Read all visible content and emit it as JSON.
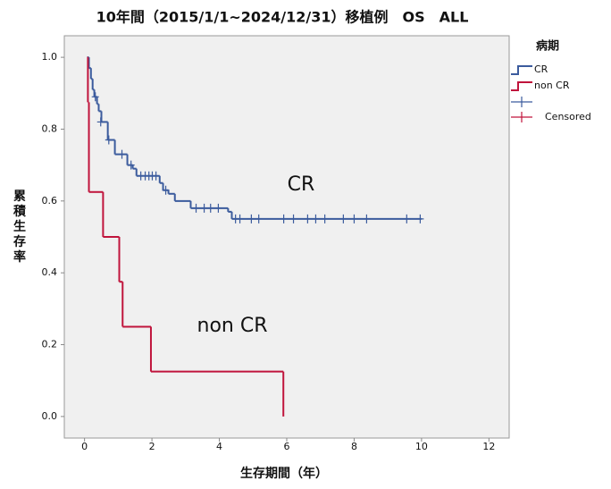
{
  "chart_data": {
    "type": "kaplan-meier",
    "title": "10年間（2015/1/1~2024/12/31）移植例　OS　ALL",
    "x_label": "生存期間（年）",
    "y_label": "累積生存率",
    "legend_title": "病期",
    "censored_label": "Censored",
    "xlim": [
      -0.6,
      12.6
    ],
    "ylim": [
      -0.06,
      1.06
    ],
    "xticks": [
      0,
      2,
      4,
      6,
      8,
      10,
      12
    ],
    "yticks": [
      {
        "value": 0,
        "label": "0.0"
      },
      0.2,
      0.4,
      0.6,
      0.8,
      {
        "value": 1,
        "label": "1.0"
      }
    ],
    "grid": false,
    "series": [
      {
        "name": "CR",
        "color": "#3b5b9d",
        "x": [
          0.08,
          0.13,
          0.19,
          0.24,
          0.29,
          0.37,
          0.42,
          0.5,
          0.69,
          0.9,
          1.27,
          1.43,
          1.54,
          2.23,
          2.33,
          2.49,
          2.68,
          3.15,
          4.26,
          4.37,
          10.0
        ],
        "values": [
          1.0,
          0.97,
          0.94,
          0.91,
          0.89,
          0.87,
          0.85,
          0.82,
          0.77,
          0.73,
          0.7,
          0.69,
          0.67,
          0.65,
          0.63,
          0.62,
          0.6,
          0.58,
          0.57,
          0.55,
          0.55
        ],
        "censored": {
          "x": [
            0.32,
            0.48,
            0.72,
            1.11,
            1.38,
            1.67,
            1.8,
            1.91,
            2.01,
            2.12,
            2.41,
            3.31,
            3.55,
            3.74,
            3.97,
            4.48,
            4.61,
            4.95,
            5.17,
            5.91,
            6.2,
            6.62,
            6.86,
            7.13,
            7.68,
            8.0,
            8.37,
            9.56,
            9.96
          ],
          "values": [
            0.89,
            0.82,
            0.77,
            0.73,
            0.7,
            0.67,
            0.67,
            0.67,
            0.67,
            0.67,
            0.63,
            0.58,
            0.58,
            0.58,
            0.58,
            0.55,
            0.55,
            0.55,
            0.55,
            0.55,
            0.55,
            0.55,
            0.55,
            0.55,
            0.55,
            0.55,
            0.55,
            0.55,
            0.55
          ]
        }
      },
      {
        "name": "non CR",
        "color": "#c0143c",
        "x": [
          0.08,
          0.1,
          0.13,
          0.55,
          1.03,
          1.13,
          1.97,
          5.9
        ],
        "values": [
          1.0,
          0.875,
          0.625,
          0.5,
          0.375,
          0.25,
          0.125,
          0.0
        ],
        "censored": {
          "x": [],
          "values": []
        }
      }
    ],
    "annotations": [
      {
        "text": "CR",
        "color": "#3b5bab"
      },
      {
        "text": "non CR",
        "color": "#d2404f"
      }
    ]
  }
}
